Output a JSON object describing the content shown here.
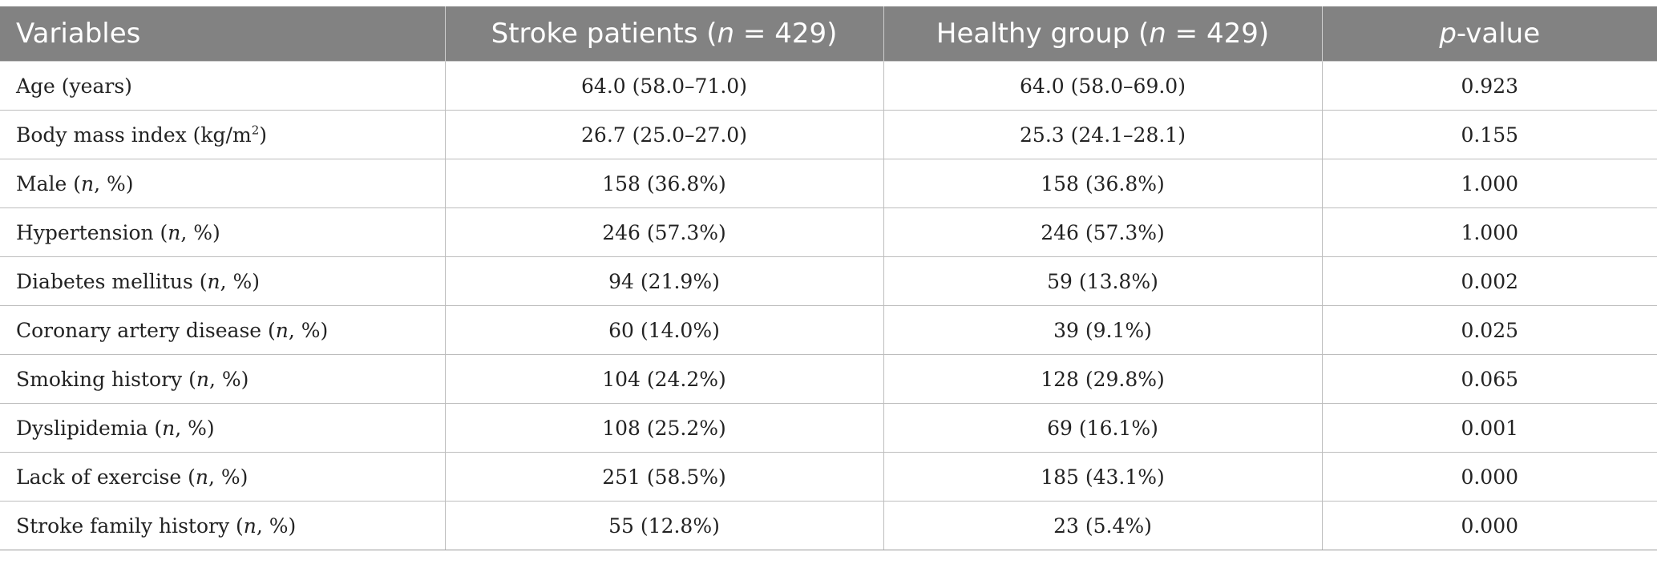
{
  "header": {
    "variables": "Variables",
    "stroke_prefix": "Stroke patients (",
    "stroke_n": "n",
    "stroke_suffix": " = 429)",
    "healthy_prefix": "Healthy group (",
    "healthy_n": "n",
    "healthy_suffix": " = 429)",
    "p_italic": "p",
    "p_suffix": "-value"
  },
  "rows": [
    {
      "label": "Age (years)",
      "unit": "",
      "unit_sup": "",
      "unit_end": "",
      "stroke": "64.0 (58.0–71.0)",
      "healthy": "64.0 (58.0–69.0)",
      "p": "0.923"
    },
    {
      "label": "Body mass index (kg/m",
      "unit": "",
      "unit_sup": "2",
      "unit_end": ")",
      "stroke": "26.7 (25.0–27.0)",
      "healthy": "25.3 (24.1–28.1)",
      "p": "0.155"
    },
    {
      "label": "Male (",
      "unit": "n",
      "unit_sup": "",
      "unit_end": ", %)",
      "stroke": "158 (36.8%)",
      "healthy": "158 (36.8%)",
      "p": "1.000"
    },
    {
      "label": "Hypertension (",
      "unit": "n",
      "unit_sup": "",
      "unit_end": ", %)",
      "stroke": "246 (57.3%)",
      "healthy": "246 (57.3%)",
      "p": "1.000"
    },
    {
      "label": "Diabetes mellitus (",
      "unit": "n",
      "unit_sup": "",
      "unit_end": ", %)",
      "stroke": "94 (21.9%)",
      "healthy": "59 (13.8%)",
      "p": "0.002"
    },
    {
      "label": "Coronary artery disease (",
      "unit": "n",
      "unit_sup": "",
      "unit_end": ", %)",
      "stroke": "60 (14.0%)",
      "healthy": "39 (9.1%)",
      "p": "0.025"
    },
    {
      "label": "Smoking history (",
      "unit": "n",
      "unit_sup": "",
      "unit_end": ", %)",
      "stroke": "104 (24.2%)",
      "healthy": "128 (29.8%)",
      "p": "0.065"
    },
    {
      "label": "Dyslipidemia (",
      "unit": "n",
      "unit_sup": "",
      "unit_end": ", %)",
      "stroke": "108 (25.2%)",
      "healthy": "69 (16.1%)",
      "p": "0.001"
    },
    {
      "label": "Lack of exercise (",
      "unit": "n",
      "unit_sup": "",
      "unit_end": ", %)",
      "stroke": "251 (58.5%)",
      "healthy": "185 (43.1%)",
      "p": "0.000"
    },
    {
      "label": "Stroke family history (",
      "unit": "n",
      "unit_sup": "",
      "unit_end": ", %)",
      "stroke": "55 (12.8%)",
      "healthy": "23 (5.4%)",
      "p": "0.000"
    }
  ]
}
